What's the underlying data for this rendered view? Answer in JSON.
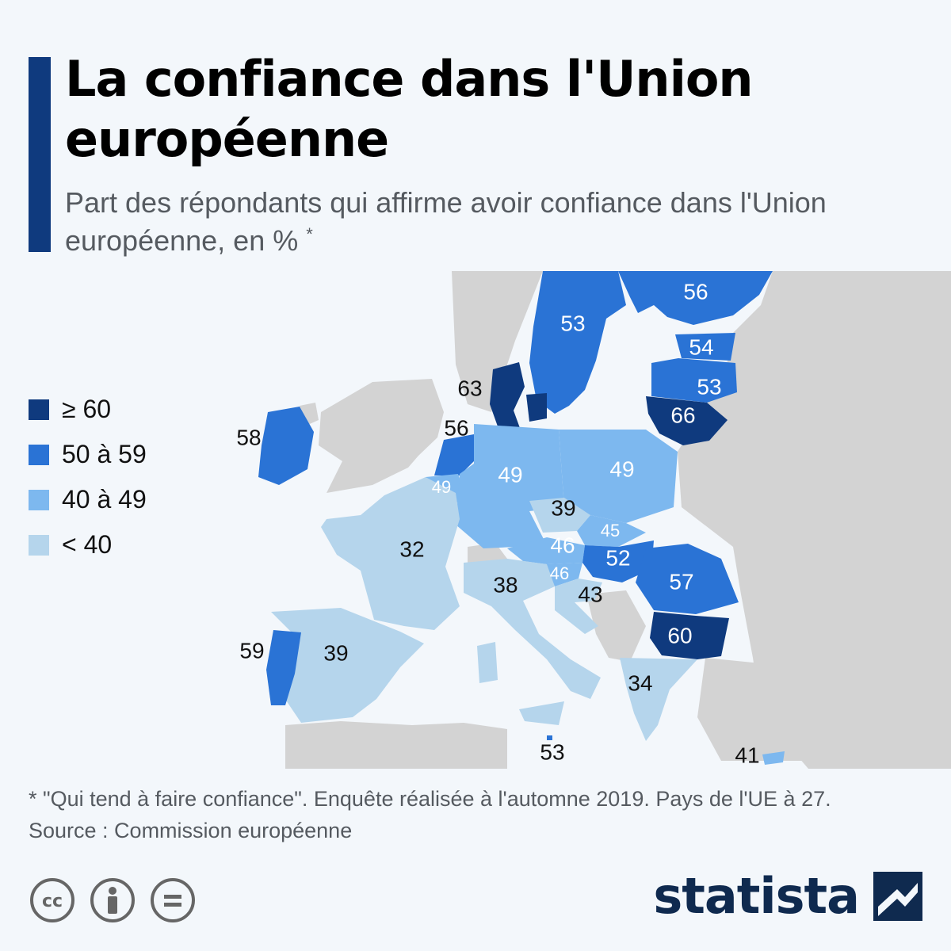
{
  "header": {
    "title": "La confiance dans l'Union européenne",
    "subtitle": "Part des répondants qui affirme avoir confiance dans l'Union européenne, en %",
    "subtitle_mark": "*"
  },
  "legend": [
    {
      "label": "≥ 60",
      "color": "#0f3a7e"
    },
    {
      "label": "50 à 59",
      "color": "#2a73d5"
    },
    {
      "label": "40 à 49",
      "color": "#7db8ef"
    },
    {
      "label": "< 40",
      "color": "#b5d5ec"
    }
  ],
  "colors": {
    "non_eu": "#d3d3d3",
    "sea": "#f3f7fb",
    "accent_bar": "#0f3a7e",
    "label_dark": "#111111",
    "label_light": "#ffffff"
  },
  "map_labels": [
    {
      "text": "56",
      "country": "Finlande",
      "tone": "light"
    },
    {
      "text": "53",
      "country": "Suède",
      "tone": "light"
    },
    {
      "text": "54",
      "country": "Estonie",
      "tone": "light"
    },
    {
      "text": "53",
      "country": "Lettonie",
      "tone": "light"
    },
    {
      "text": "66",
      "country": "Lituanie",
      "tone": "light"
    },
    {
      "text": "63",
      "country": "Danemark",
      "tone": "dark"
    },
    {
      "text": "58",
      "country": "Irlande",
      "tone": "dark"
    },
    {
      "text": "56",
      "country": "Pays-Bas",
      "tone": "dark"
    },
    {
      "text": "49",
      "country": "Belgique",
      "tone": "light"
    },
    {
      "text": "49",
      "country": "Allemagne",
      "tone": "light"
    },
    {
      "text": "49",
      "country": "Pologne",
      "tone": "light"
    },
    {
      "text": "39",
      "country": "Tchéquie",
      "tone": "dark"
    },
    {
      "text": "45",
      "country": "Slovaquie",
      "tone": "light"
    },
    {
      "text": "32",
      "country": "France",
      "tone": "dark"
    },
    {
      "text": "46",
      "country": "Autriche",
      "tone": "light"
    },
    {
      "text": "52",
      "country": "Hongrie",
      "tone": "light"
    },
    {
      "text": "57",
      "country": "Roumanie",
      "tone": "light"
    },
    {
      "text": "46",
      "country": "Slovénie",
      "tone": "light"
    },
    {
      "text": "43",
      "country": "Croatie",
      "tone": "dark"
    },
    {
      "text": "38",
      "country": "Italie",
      "tone": "dark"
    },
    {
      "text": "60",
      "country": "Bulgarie",
      "tone": "light"
    },
    {
      "text": "59",
      "country": "Portugal",
      "tone": "dark"
    },
    {
      "text": "39",
      "country": "Espagne",
      "tone": "dark"
    },
    {
      "text": "34",
      "country": "Grèce",
      "tone": "dark"
    },
    {
      "text": "53",
      "country": "Malte",
      "tone": "dark"
    },
    {
      "text": "41",
      "country": "Chypre",
      "tone": "dark"
    }
  ],
  "footer": {
    "note": "* \"Qui tend à faire confiance\". Enquête réalisée à l'automne 2019. Pays de l'UE à 27.",
    "source": "Source : Commission européenne",
    "license_icons": [
      "cc-icon",
      "attribution-icon",
      "no-derivatives-icon"
    ],
    "brand": "statista"
  }
}
